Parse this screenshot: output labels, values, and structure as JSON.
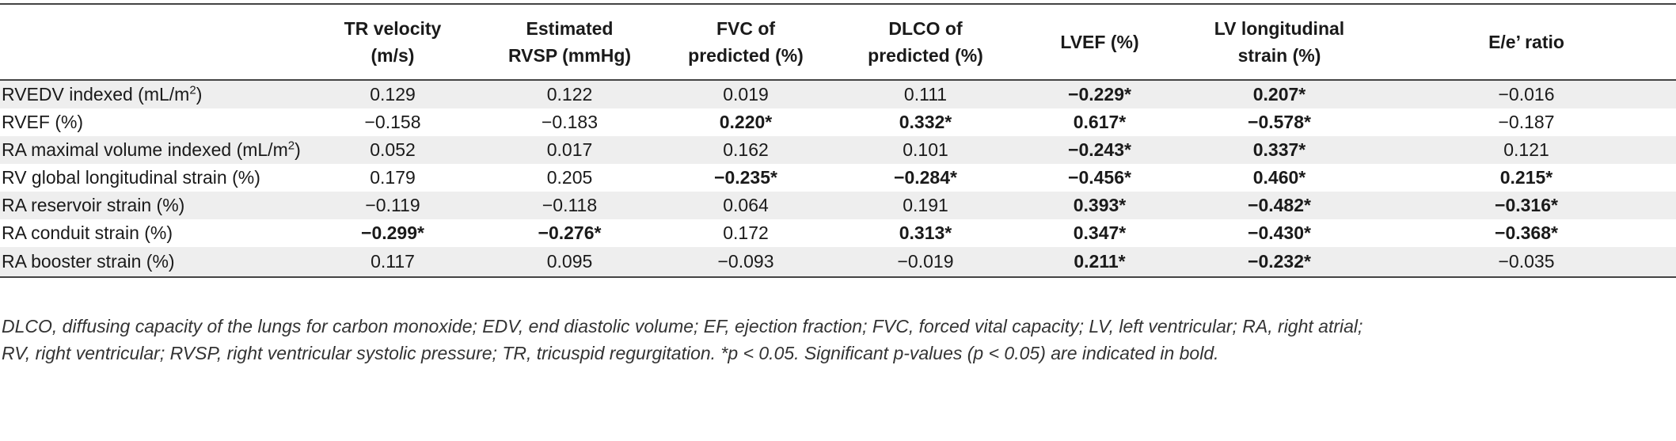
{
  "headers": [
    {
      "l1": "",
      "l2": ""
    },
    {
      "l1": "TR velocity",
      "l2": "(m/s)"
    },
    {
      "l1": "Estimated",
      "l2": "RVSP (mmHg)"
    },
    {
      "l1": "FVC of",
      "l2": "predicted (%)"
    },
    {
      "l1": "DLCO of",
      "l2": "predicted (%)"
    },
    {
      "l1": "LVEF (%)",
      "l2": ""
    },
    {
      "l1": "LV longitudinal",
      "l2": "strain (%)"
    },
    {
      "l1": "E/e’ ratio",
      "l2": ""
    }
  ],
  "rows": [
    {
      "label": "RVEDV indexed (mL/m",
      "label_sup": "2",
      "label_tail": ")",
      "cells": [
        {
          "v": "0.129",
          "b": false
        },
        {
          "v": "0.122",
          "b": false
        },
        {
          "v": "0.019",
          "b": false
        },
        {
          "v": "0.111",
          "b": false
        },
        {
          "v": "−0.229*",
          "b": true
        },
        {
          "v": "0.207*",
          "b": true
        },
        {
          "v": "−0.016",
          "b": false
        }
      ]
    },
    {
      "label": "RVEF (%)",
      "label_sup": "",
      "label_tail": "",
      "cells": [
        {
          "v": "−0.158",
          "b": false
        },
        {
          "v": "−0.183",
          "b": false
        },
        {
          "v": "0.220*",
          "b": true
        },
        {
          "v": "0.332*",
          "b": true
        },
        {
          "v": "0.617*",
          "b": true
        },
        {
          "v": "−0.578*",
          "b": true
        },
        {
          "v": "−0.187",
          "b": false
        }
      ]
    },
    {
      "label": "RA maximal volume indexed (mL/m",
      "label_sup": "2",
      "label_tail": ")",
      "cells": [
        {
          "v": "0.052",
          "b": false
        },
        {
          "v": "0.017",
          "b": false
        },
        {
          "v": "0.162",
          "b": false
        },
        {
          "v": "0.101",
          "b": false
        },
        {
          "v": "−0.243*",
          "b": true
        },
        {
          "v": "0.337*",
          "b": true
        },
        {
          "v": "0.121",
          "b": false
        }
      ]
    },
    {
      "label": "RV global longitudinal strain (%)",
      "label_sup": "",
      "label_tail": "",
      "cells": [
        {
          "v": "0.179",
          "b": false
        },
        {
          "v": "0.205",
          "b": false
        },
        {
          "v": "−0.235*",
          "b": true
        },
        {
          "v": "−0.284*",
          "b": true
        },
        {
          "v": "−0.456*",
          "b": true
        },
        {
          "v": "0.460*",
          "b": true
        },
        {
          "v": "0.215*",
          "b": true
        }
      ]
    },
    {
      "label": "RA reservoir strain (%)",
      "label_sup": "",
      "label_tail": "",
      "cells": [
        {
          "v": "−0.119",
          "b": false
        },
        {
          "v": "−0.118",
          "b": false
        },
        {
          "v": "0.064",
          "b": false
        },
        {
          "v": "0.191",
          "b": false
        },
        {
          "v": "0.393*",
          "b": true
        },
        {
          "v": "−0.482*",
          "b": true
        },
        {
          "v": "−0.316*",
          "b": true
        }
      ]
    },
    {
      "label": "RA conduit strain (%)",
      "label_sup": "",
      "label_tail": "",
      "cells": [
        {
          "v": "−0.299*",
          "b": true
        },
        {
          "v": "−0.276*",
          "b": true
        },
        {
          "v": "0.172",
          "b": false
        },
        {
          "v": "0.313*",
          "b": true
        },
        {
          "v": "0.347*",
          "b": true
        },
        {
          "v": "−0.430*",
          "b": true
        },
        {
          "v": "−0.368*",
          "b": true
        }
      ]
    },
    {
      "label": "RA booster strain (%)",
      "label_sup": "",
      "label_tail": "",
      "cells": [
        {
          "v": "0.117",
          "b": false
        },
        {
          "v": "0.095",
          "b": false
        },
        {
          "v": "−0.093",
          "b": false
        },
        {
          "v": "−0.019",
          "b": false
        },
        {
          "v": "0.211*",
          "b": true
        },
        {
          "v": "−0.232*",
          "b": true
        },
        {
          "v": "−0.035",
          "b": false
        }
      ]
    }
  ],
  "footnote": {
    "line1": "DLCO, diffusing capacity of the lungs for carbon monoxide; EDV, end diastolic volume; EF, ejection fraction; FVC, forced vital capacity; LV, left ventricular; RA, right atrial;",
    "line2": "RV, right ventricular; RVSP, right ventricular systolic pressure; TR, tricuspid regurgitation. *p < 0.05. Significant p-values (p < 0.05) are indicated in bold."
  }
}
